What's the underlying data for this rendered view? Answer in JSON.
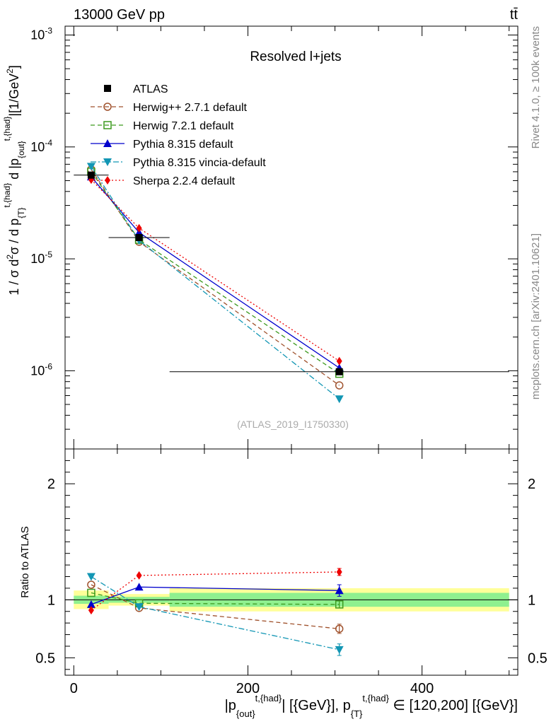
{
  "header": {
    "left": "13000 GeV pp",
    "right": "tt̄"
  },
  "side_labels": {
    "rivet": "Rivet 4.1.0, ≥ 100k events",
    "mcplots": "mcplots.cern.ch [arXiv:2401.10621]"
  },
  "chart_data": [
    {
      "type": "line",
      "panel": "main",
      "title": "Resolved l+jets",
      "watermark": "(ATLAS_2019_I1750330)",
      "ylabel": "1 / σ d²σ / d p_{T}^{t,{had}} d |p_{out}^{t,{had}}| [1/GeV²]",
      "yscale": "log",
      "ylim": [
        2e-07,
        0.0012
      ],
      "xlim": [
        -10,
        510
      ],
      "yticks": [
        {
          "value": 0.001,
          "base": "10",
          "exp": "-3"
        },
        {
          "value": 0.0001,
          "base": "10",
          "exp": "-4"
        },
        {
          "value": 1e-05,
          "base": "10",
          "exp": "-5"
        },
        {
          "value": 1e-06,
          "base": "10",
          "exp": "-6"
        }
      ],
      "x": [
        20,
        75,
        305
      ],
      "xerr": [
        20,
        35,
        195
      ],
      "data": {
        "name": "ATLAS",
        "values": [
          5.6e-05,
          1.55e-05,
          9.8e-07
        ],
        "band_outer": [
          0.08,
          0.05,
          0.1
        ],
        "band_inner": [
          0.035,
          0.025,
          0.06
        ]
      },
      "series": [
        {
          "name": "Herwig++ 2.7.1 default",
          "color": "#a0522d",
          "style": "dashed",
          "marker": "open-circle",
          "values": [
            6.3e-05,
            1.42e-05,
            7.4e-07
          ]
        },
        {
          "name": "Herwig 7.2.1 default",
          "color": "#3c9a1e",
          "style": "dashed",
          "marker": "open-square",
          "values": [
            6e-05,
            1.48e-05,
            9.4e-07
          ]
        },
        {
          "name": "Pythia 8.315 default",
          "color": "#0000cc",
          "style": "solid",
          "marker": "triangle-up",
          "values": [
            5.4e-05,
            1.72e-05,
            1.06e-06
          ]
        },
        {
          "name": "Pythia 8.315 vincia-default",
          "color": "#1296b4",
          "style": "dashdot",
          "marker": "triangle-down",
          "values": [
            6.7e-05,
            1.46e-05,
            5.6e-07
          ]
        },
        {
          "name": "Sherpa 2.2.4 default",
          "color": "#ee0000",
          "style": "dotted",
          "marker": "diamond",
          "values": [
            5.1e-05,
            1.88e-05,
            1.22e-06
          ]
        }
      ]
    },
    {
      "type": "line",
      "panel": "ratio",
      "ylabel": "Ratio to ATLAS",
      "xlabel": "|p_{out}^{t,{had}}| [{GeV}], p_{T}^{t,{had}} ∈ [120,200] [{GeV}]",
      "ylim": [
        0.35,
        2.3
      ],
      "xlim": [
        -10,
        510
      ],
      "yticks": [
        {
          "value": 0.5,
          "label": "0.5"
        },
        {
          "value": 1,
          "label": "1"
        },
        {
          "value": 2,
          "label": "2"
        }
      ],
      "xticks": [
        {
          "value": 0,
          "label": "0"
        },
        {
          "value": 200,
          "label": "200"
        },
        {
          "value": 400,
          "label": "400"
        }
      ],
      "x": [
        20,
        75,
        305
      ],
      "series": [
        {
          "name": "Herwig++ 2.7.1 default",
          "values": [
            1.13,
            0.93,
            0.75
          ],
          "err": [
            0.01,
            0.01,
            0.04
          ]
        },
        {
          "name": "Herwig 7.2.1 default",
          "values": [
            1.06,
            0.97,
            0.96
          ],
          "err": [
            0.01,
            0.01,
            0.03
          ]
        },
        {
          "name": "Pythia 8.315 default",
          "values": [
            0.96,
            1.11,
            1.08
          ],
          "err": [
            0.01,
            0.01,
            0.05
          ]
        },
        {
          "name": "Pythia 8.315 vincia-default",
          "values": [
            1.2,
            0.94,
            0.57
          ],
          "err": [
            0.01,
            0.01,
            0.05
          ]
        },
        {
          "name": "Sherpa 2.2.4 default",
          "values": [
            0.91,
            1.21,
            1.24
          ],
          "err": [
            0.01,
            0.01,
            0.03
          ]
        }
      ]
    }
  ]
}
